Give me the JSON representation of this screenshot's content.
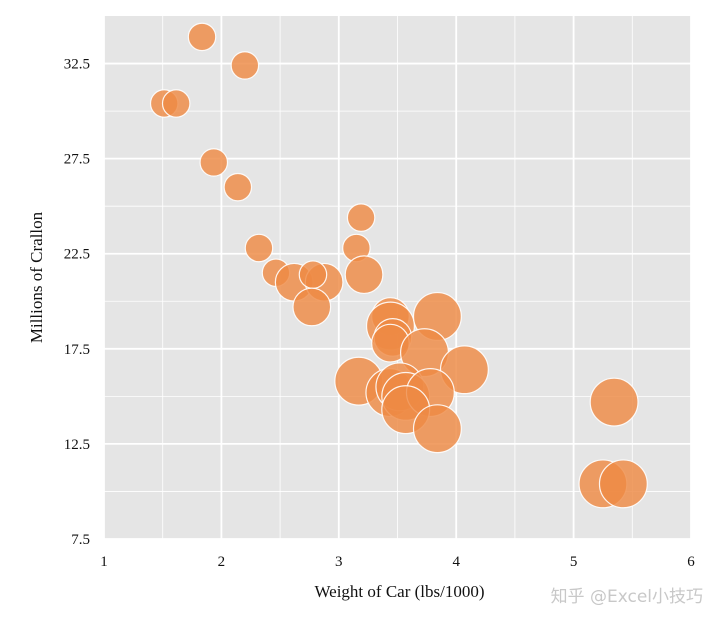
{
  "chart_data": {
    "type": "scatter",
    "title": "",
    "xlabel": "Weight of Car (lbs/1000)",
    "ylabel": "Millions of Crallon",
    "xlim": [
      1,
      6
    ],
    "ylim": [
      7.5,
      35
    ],
    "xticks": [
      1,
      2,
      3,
      4,
      5,
      6
    ],
    "xtick_labels": [
      "1",
      "2",
      "3",
      "4",
      "5",
      "6"
    ],
    "yticks": [
      7.5,
      12.5,
      17.5,
      22.5,
      27.5,
      32.5
    ],
    "ytick_labels": [
      "7.5",
      "12.5",
      "17.5",
      "22.5",
      "27.5",
      "32.5"
    ],
    "grid": true,
    "background": "#e5e5e5",
    "grid_color": "#ffffff",
    "marker_color": "#ee8a44",
    "marker_edge": "#ffffff",
    "points": [
      {
        "x": 1.835,
        "y": 33.9,
        "size": 4
      },
      {
        "x": 2.2,
        "y": 32.4,
        "size": 4
      },
      {
        "x": 1.513,
        "y": 30.4,
        "size": 4
      },
      {
        "x": 1.615,
        "y": 30.4,
        "size": 4
      },
      {
        "x": 1.935,
        "y": 27.3,
        "size": 4
      },
      {
        "x": 2.14,
        "y": 26.0,
        "size": 4
      },
      {
        "x": 3.19,
        "y": 24.4,
        "size": 4
      },
      {
        "x": 2.32,
        "y": 22.8,
        "size": 4
      },
      {
        "x": 3.15,
        "y": 22.8,
        "size": 4
      },
      {
        "x": 3.215,
        "y": 21.4,
        "size": 6
      },
      {
        "x": 2.465,
        "y": 21.5,
        "size": 4
      },
      {
        "x": 2.62,
        "y": 21.0,
        "size": 6
      },
      {
        "x": 2.875,
        "y": 21.0,
        "size": 6
      },
      {
        "x": 2.78,
        "y": 21.4,
        "size": 4
      },
      {
        "x": 2.77,
        "y": 19.7,
        "size": 6
      },
      {
        "x": 3.44,
        "y": 19.2,
        "size": 6
      },
      {
        "x": 3.44,
        "y": 18.7,
        "size": 8
      },
      {
        "x": 3.46,
        "y": 18.1,
        "size": 6
      },
      {
        "x": 3.44,
        "y": 17.8,
        "size": 6
      },
      {
        "x": 3.84,
        "y": 19.2,
        "size": 8
      },
      {
        "x": 3.73,
        "y": 17.3,
        "size": 8
      },
      {
        "x": 4.07,
        "y": 16.4,
        "size": 8
      },
      {
        "x": 3.17,
        "y": 15.8,
        "size": 8
      },
      {
        "x": 3.435,
        "y": 15.2,
        "size": 8
      },
      {
        "x": 3.52,
        "y": 15.5,
        "size": 8
      },
      {
        "x": 3.57,
        "y": 15.0,
        "size": 8
      },
      {
        "x": 3.78,
        "y": 15.2,
        "size": 8
      },
      {
        "x": 3.57,
        "y": 14.3,
        "size": 8
      },
      {
        "x": 3.84,
        "y": 13.3,
        "size": 8
      },
      {
        "x": 5.345,
        "y": 14.7,
        "size": 8
      },
      {
        "x": 5.25,
        "y": 10.4,
        "size": 8
      },
      {
        "x": 5.424,
        "y": 10.4,
        "size": 8
      }
    ]
  },
  "watermark": {
    "text": "知乎 @Excel小技巧"
  }
}
